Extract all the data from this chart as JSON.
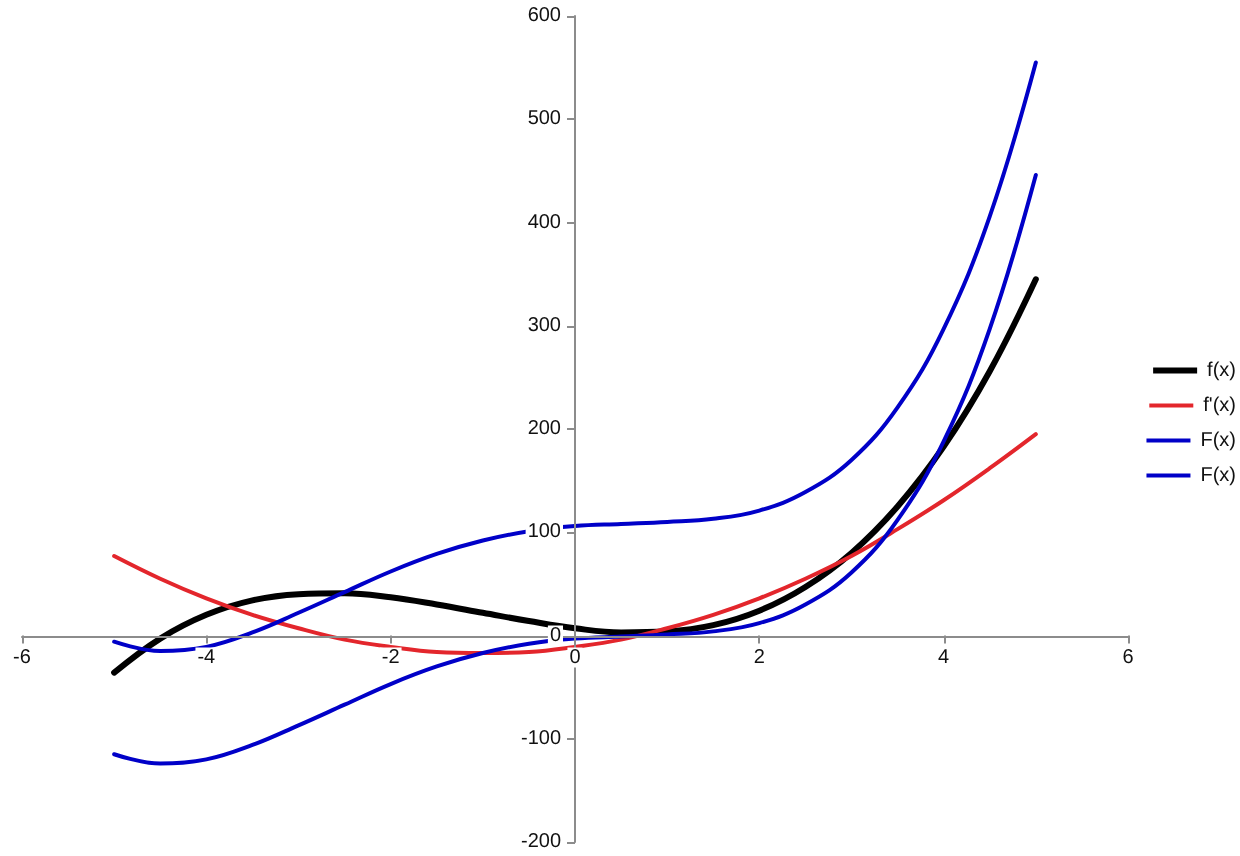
{
  "chart_data": {
    "type": "line",
    "x": [
      -5,
      -4.5,
      -4,
      -3.5,
      -3,
      -2.5,
      -2,
      -1.5,
      -1,
      -0.5,
      0,
      0.5,
      1,
      1.5,
      2,
      2.5,
      3,
      3.5,
      4,
      4.5,
      5
    ],
    "series": [
      {
        "name": "f(x)",
        "color": "#000000",
        "values": [
          -36,
          -3,
          20,
          34,
          40,
          41,
          37,
          30,
          22,
          14,
          7,
          3,
          4,
          10,
          24,
          47,
          80,
          125,
          183,
          256,
          345
        ]
      },
      {
        "name": "f'(x)",
        "color": "#e3262c",
        "values": [
          77,
          55,
          36,
          20,
          7,
          -4,
          -11,
          -16,
          -17,
          -16,
          -11,
          -4,
          7,
          20,
          36,
          55,
          77,
          103,
          131,
          162,
          195
        ]
      },
      {
        "name": "F(x)",
        "color": "#0000c8",
        "values": [
          -6,
          -15,
          -11,
          3,
          22,
          42,
          62,
          79,
          92,
          101,
          106,
          108,
          110,
          113,
          121,
          139,
          170,
          221,
          297,
          406,
          555
        ]
      },
      {
        "name": "F(x)",
        "color": "#0000c8",
        "values": [
          -115,
          -124,
          -120,
          -106,
          -87,
          -67,
          -47,
          -30,
          -17,
          -8,
          -3,
          -1,
          1,
          4,
          12,
          30,
          61,
          112,
          188,
          297,
          446
        ]
      }
    ],
    "xlim": [
      -6,
      6
    ],
    "xticks": [
      -6,
      -4,
      -2,
      0,
      2,
      4,
      6
    ],
    "ylim": [
      -200,
      600
    ],
    "yticks": [
      -200,
      -100,
      0,
      100,
      200,
      300,
      400,
      500,
      600
    ],
    "grid": false,
    "legend": "right",
    "marker": "none",
    "line_style": "solid"
  }
}
